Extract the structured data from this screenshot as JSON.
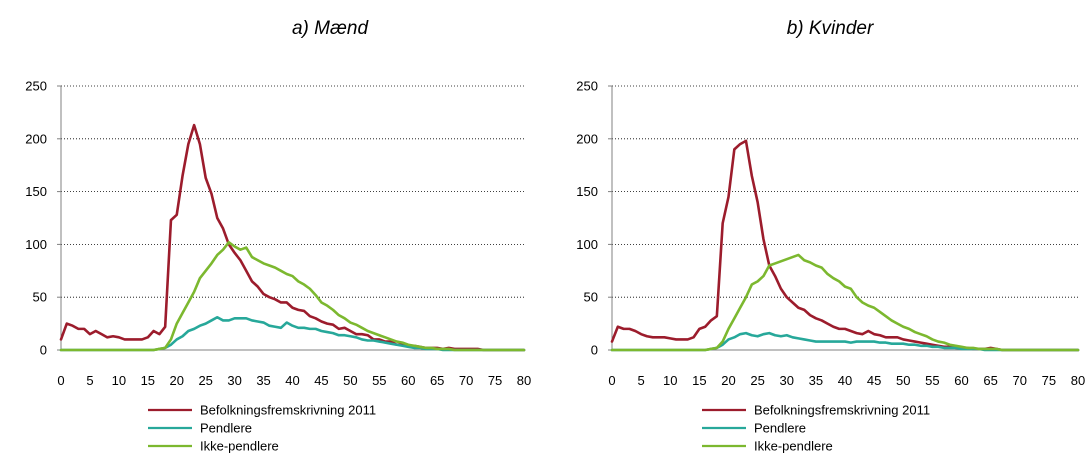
{
  "chart_data": [
    {
      "type": "line",
      "title": "a) Mænd",
      "xlim": [
        0,
        80
      ],
      "ylim": [
        0,
        250
      ],
      "xticks": [
        "0",
        "5",
        "10",
        "15",
        "20",
        "25",
        "30",
        "35",
        "40",
        "45",
        "50",
        "55",
        "60",
        "65",
        "70",
        "75",
        "80"
      ],
      "yticks": [
        "0",
        "50",
        "100",
        "150",
        "200",
        "250"
      ],
      "grid": "horizontal-dotted",
      "legend_position": "bottom",
      "series": [
        {
          "name": "Befolkningsfremskrivning 2011",
          "color": "#9c1c2c",
          "x": [
            0,
            1,
            2,
            3,
            4,
            5,
            6,
            7,
            8,
            9,
            10,
            11,
            12,
            13,
            14,
            15,
            16,
            17,
            18,
            19,
            20,
            21,
            22,
            23,
            24,
            25,
            26,
            27,
            28,
            29,
            30,
            31,
            32,
            33,
            34,
            35,
            36,
            37,
            38,
            39,
            40,
            41,
            42,
            43,
            44,
            45,
            46,
            47,
            48,
            49,
            50,
            51,
            52,
            53,
            54,
            55,
            56,
            57,
            58,
            59,
            60,
            61,
            62,
            63,
            64,
            65,
            66,
            67,
            68,
            69,
            70,
            71,
            72,
            73,
            74,
            75,
            76,
            77,
            78,
            79,
            80
          ],
          "y": [
            10,
            25,
            23,
            20,
            20,
            15,
            18,
            15,
            12,
            13,
            12,
            10,
            10,
            10,
            10,
            12,
            18,
            15,
            22,
            123,
            128,
            165,
            195,
            213,
            195,
            163,
            148,
            125,
            115,
            100,
            92,
            85,
            75,
            65,
            60,
            53,
            50,
            48,
            45,
            45,
            40,
            38,
            37,
            32,
            30,
            27,
            25,
            24,
            20,
            21,
            18,
            15,
            15,
            14,
            10,
            10,
            8,
            8,
            5,
            5,
            4,
            4,
            3,
            2,
            2,
            2,
            1,
            2,
            1,
            1,
            1,
            1,
            1,
            0,
            0,
            0,
            0,
            0,
            0,
            0,
            0
          ]
        },
        {
          "name": "Pendlere",
          "color": "#27a89a",
          "x": [
            0,
            1,
            2,
            3,
            4,
            5,
            6,
            7,
            8,
            9,
            10,
            11,
            12,
            13,
            14,
            15,
            16,
            17,
            18,
            19,
            20,
            21,
            22,
            23,
            24,
            25,
            26,
            27,
            28,
            29,
            30,
            31,
            32,
            33,
            34,
            35,
            36,
            37,
            38,
            39,
            40,
            41,
            42,
            43,
            44,
            45,
            46,
            47,
            48,
            49,
            50,
            51,
            52,
            53,
            54,
            55,
            56,
            57,
            58,
            59,
            60,
            61,
            62,
            63,
            64,
            65,
            66,
            67,
            68,
            69,
            70,
            71,
            72,
            73,
            74,
            75,
            76,
            77,
            78,
            79,
            80
          ],
          "y": [
            0,
            0,
            0,
            0,
            0,
            0,
            0,
            0,
            0,
            0,
            0,
            0,
            0,
            0,
            0,
            0,
            0,
            1,
            2,
            5,
            10,
            13,
            18,
            20,
            23,
            25,
            28,
            31,
            28,
            28,
            30,
            30,
            30,
            28,
            27,
            26,
            23,
            22,
            21,
            26,
            23,
            21,
            21,
            20,
            20,
            18,
            17,
            16,
            14,
            14,
            13,
            12,
            10,
            9,
            9,
            8,
            7,
            6,
            5,
            4,
            3,
            2,
            2,
            1,
            1,
            1,
            0,
            0,
            0,
            0,
            0,
            0,
            0,
            0,
            0,
            0,
            0,
            0,
            0,
            0,
            0
          ]
        },
        {
          "name": "Ikke-pendlere",
          "color": "#7cb82f",
          "x": [
            0,
            1,
            2,
            3,
            4,
            5,
            6,
            7,
            8,
            9,
            10,
            11,
            12,
            13,
            14,
            15,
            16,
            17,
            18,
            19,
            20,
            21,
            22,
            23,
            24,
            25,
            26,
            27,
            28,
            29,
            30,
            31,
            32,
            33,
            34,
            35,
            36,
            37,
            38,
            39,
            40,
            41,
            42,
            43,
            44,
            45,
            46,
            47,
            48,
            49,
            50,
            51,
            52,
            53,
            54,
            55,
            56,
            57,
            58,
            59,
            60,
            61,
            62,
            63,
            64,
            65,
            66,
            67,
            68,
            69,
            70,
            71,
            72,
            73,
            74,
            75,
            76,
            77,
            78,
            79,
            80
          ],
          "y": [
            0,
            0,
            0,
            0,
            0,
            0,
            0,
            0,
            0,
            0,
            0,
            0,
            0,
            0,
            0,
            0,
            0,
            1,
            2,
            10,
            25,
            35,
            45,
            55,
            68,
            75,
            82,
            90,
            95,
            102,
            98,
            95,
            97,
            88,
            85,
            82,
            80,
            78,
            75,
            72,
            70,
            65,
            62,
            58,
            52,
            45,
            42,
            38,
            33,
            30,
            26,
            24,
            21,
            18,
            16,
            14,
            12,
            10,
            8,
            7,
            5,
            4,
            3,
            2,
            2,
            1,
            1,
            1,
            0,
            0,
            0,
            0,
            0,
            0,
            0,
            0,
            0,
            0,
            0,
            0,
            0
          ]
        }
      ]
    },
    {
      "type": "line",
      "title": "b) Kvinder",
      "xlim": [
        0,
        80
      ],
      "ylim": [
        0,
        250
      ],
      "xticks": [
        "0",
        "5",
        "10",
        "15",
        "20",
        "25",
        "30",
        "35",
        "40",
        "45",
        "50",
        "55",
        "60",
        "65",
        "70",
        "75",
        "80"
      ],
      "yticks": [
        "0",
        "50",
        "100",
        "150",
        "200",
        "250"
      ],
      "grid": "horizontal-dotted",
      "legend_position": "bottom",
      "series": [
        {
          "name": "Befolkningsfremskrivning 2011",
          "color": "#9c1c2c",
          "x": [
            0,
            1,
            2,
            3,
            4,
            5,
            6,
            7,
            8,
            9,
            10,
            11,
            12,
            13,
            14,
            15,
            16,
            17,
            18,
            19,
            20,
            21,
            22,
            23,
            24,
            25,
            26,
            27,
            28,
            29,
            30,
            31,
            32,
            33,
            34,
            35,
            36,
            37,
            38,
            39,
            40,
            41,
            42,
            43,
            44,
            45,
            46,
            47,
            48,
            49,
            50,
            51,
            52,
            53,
            54,
            55,
            56,
            57,
            58,
            59,
            60,
            61,
            62,
            63,
            64,
            65,
            66,
            67,
            68,
            69,
            70,
            71,
            72,
            73,
            74,
            75,
            76,
            77,
            78,
            79,
            80
          ],
          "y": [
            8,
            22,
            20,
            20,
            18,
            15,
            13,
            12,
            12,
            12,
            11,
            10,
            10,
            10,
            12,
            20,
            22,
            28,
            32,
            120,
            145,
            190,
            195,
            198,
            165,
            140,
            105,
            80,
            70,
            58,
            50,
            45,
            40,
            38,
            33,
            30,
            28,
            25,
            22,
            20,
            20,
            18,
            16,
            15,
            18,
            15,
            14,
            12,
            12,
            12,
            10,
            9,
            8,
            7,
            6,
            5,
            4,
            3,
            3,
            2,
            2,
            2,
            1,
            1,
            1,
            2,
            1,
            0,
            0,
            0,
            0,
            0,
            0,
            0,
            0,
            0,
            0,
            0,
            0,
            0,
            0
          ]
        },
        {
          "name": "Pendlere",
          "color": "#27a89a",
          "x": [
            0,
            1,
            2,
            3,
            4,
            5,
            6,
            7,
            8,
            9,
            10,
            11,
            12,
            13,
            14,
            15,
            16,
            17,
            18,
            19,
            20,
            21,
            22,
            23,
            24,
            25,
            26,
            27,
            28,
            29,
            30,
            31,
            32,
            33,
            34,
            35,
            36,
            37,
            38,
            39,
            40,
            41,
            42,
            43,
            44,
            45,
            46,
            47,
            48,
            49,
            50,
            51,
            52,
            53,
            54,
            55,
            56,
            57,
            58,
            59,
            60,
            61,
            62,
            63,
            64,
            65,
            66,
            67,
            68,
            69,
            70,
            71,
            72,
            73,
            74,
            75,
            76,
            77,
            78,
            79,
            80
          ],
          "y": [
            0,
            0,
            0,
            0,
            0,
            0,
            0,
            0,
            0,
            0,
            0,
            0,
            0,
            0,
            0,
            0,
            0,
            1,
            2,
            5,
            10,
            12,
            15,
            16,
            14,
            13,
            15,
            16,
            14,
            13,
            14,
            12,
            11,
            10,
            9,
            8,
            8,
            8,
            8,
            8,
            8,
            7,
            8,
            8,
            8,
            8,
            7,
            7,
            6,
            6,
            6,
            5,
            5,
            4,
            4,
            3,
            3,
            2,
            2,
            2,
            1,
            1,
            1,
            1,
            0,
            0,
            0,
            0,
            0,
            0,
            0,
            0,
            0,
            0,
            0,
            0,
            0,
            0,
            0,
            0,
            0
          ]
        },
        {
          "name": "Ikke-pendlere",
          "color": "#7cb82f",
          "x": [
            0,
            1,
            2,
            3,
            4,
            5,
            6,
            7,
            8,
            9,
            10,
            11,
            12,
            13,
            14,
            15,
            16,
            17,
            18,
            19,
            20,
            21,
            22,
            23,
            24,
            25,
            26,
            27,
            28,
            29,
            30,
            31,
            32,
            33,
            34,
            35,
            36,
            37,
            38,
            39,
            40,
            41,
            42,
            43,
            44,
            45,
            46,
            47,
            48,
            49,
            50,
            51,
            52,
            53,
            54,
            55,
            56,
            57,
            58,
            59,
            60,
            61,
            62,
            63,
            64,
            65,
            66,
            67,
            68,
            69,
            70,
            71,
            72,
            73,
            74,
            75,
            76,
            77,
            78,
            79,
            80
          ],
          "y": [
            0,
            0,
            0,
            0,
            0,
            0,
            0,
            0,
            0,
            0,
            0,
            0,
            0,
            0,
            0,
            0,
            0,
            1,
            2,
            8,
            20,
            30,
            40,
            50,
            62,
            65,
            70,
            80,
            82,
            84,
            86,
            88,
            90,
            85,
            83,
            80,
            78,
            72,
            68,
            65,
            60,
            58,
            50,
            45,
            42,
            40,
            36,
            32,
            28,
            25,
            22,
            20,
            17,
            15,
            13,
            10,
            8,
            7,
            5,
            4,
            3,
            2,
            2,
            1,
            1,
            1,
            1,
            0,
            0,
            0,
            0,
            0,
            0,
            0,
            0,
            0,
            0,
            0,
            0,
            0,
            0
          ]
        }
      ]
    }
  ]
}
